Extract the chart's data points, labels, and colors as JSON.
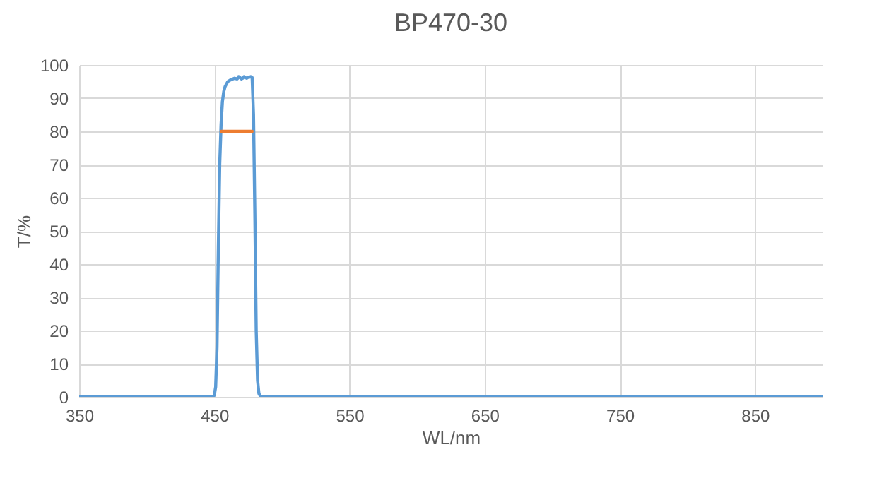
{
  "chart_data": {
    "type": "line",
    "title": "BP470-30",
    "xlabel": "WL/nm",
    "ylabel": "T/%",
    "xlim": [
      350,
      900
    ],
    "xticks": [
      350,
      450,
      550,
      650,
      750,
      850
    ],
    "ylim": [
      0,
      100
    ],
    "yticks": [
      0,
      10,
      20,
      30,
      40,
      50,
      60,
      70,
      80,
      90,
      100
    ],
    "grid": true,
    "marker": "none",
    "series": [
      {
        "color": "#5b9bd5",
        "x": [
          350,
          440,
          449,
          450,
          451,
          452,
          453,
          454,
          455,
          456,
          457,
          458,
          460,
          462,
          465,
          467,
          468,
          469,
          470,
          471,
          472,
          473,
          474,
          475,
          476,
          477,
          478,
          479,
          480,
          481,
          482,
          483,
          484,
          485,
          500,
          600,
          700,
          800,
          900
        ],
        "values": [
          0,
          0,
          0,
          0.5,
          3,
          15,
          45,
          70,
          82,
          89,
          92,
          93.5,
          95,
          95.5,
          96,
          95.8,
          96.5,
          96.2,
          95.8,
          96,
          96.5,
          96.2,
          96,
          96.3,
          96.3,
          96.5,
          96.2,
          85,
          55,
          20,
          5,
          1,
          0.3,
          0,
          0,
          0,
          0,
          0,
          0
        ]
      },
      {
        "color": "#ed7d31",
        "x": [
          455,
          478
        ],
        "values": [
          80,
          80
        ]
      }
    ]
  }
}
